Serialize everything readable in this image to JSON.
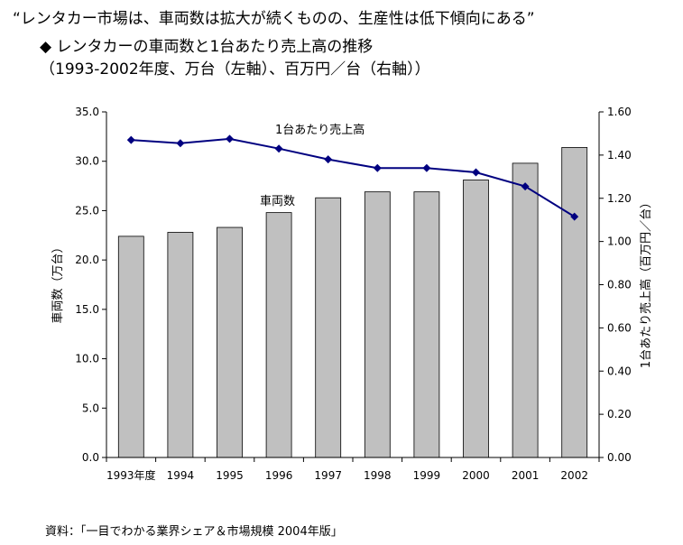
{
  "headline": "“レンタカー市場は、車両数は拡大が続くものの、生産性は低下傾向にある”",
  "subtitle_line1": "◆ レンタカーの車両数と1台あたり売上高の推移",
  "subtitle_line2": "（1993-2002年度、万台（左軸）、百万円／台（右軸））",
  "source": "資料：「一目でわかる業界シェア＆市場規模 2004年版」",
  "chart_data": {
    "type": "bar+line",
    "categories": [
      "1993年度",
      "1994",
      "1995",
      "1996",
      "1997",
      "1998",
      "1999",
      "2000",
      "2001",
      "2002"
    ],
    "series": [
      {
        "name": "車両数",
        "type": "bar",
        "axis": "left",
        "color": "#c0c0c0",
        "values": [
          22.4,
          22.8,
          23.3,
          24.8,
          26.3,
          26.9,
          26.9,
          28.1,
          29.8,
          31.4
        ]
      },
      {
        "name": "1台あたり売上高",
        "type": "line",
        "axis": "right",
        "color": "#000080",
        "values": [
          1.47,
          1.455,
          1.475,
          1.43,
          1.38,
          1.34,
          1.34,
          1.32,
          1.255,
          1.115
        ]
      }
    ],
    "ylabel_left": "車両数（万台）",
    "ylabel_right": "1台あたり売上高（百万円／台）",
    "ylim_left": [
      0,
      35
    ],
    "ylim_right": [
      0,
      1.6
    ],
    "yticks_left": [
      "0.0",
      "5.0",
      "10.0",
      "15.0",
      "20.0",
      "25.0",
      "30.0",
      "35.0"
    ],
    "yticks_right": [
      "0.00",
      "0.20",
      "0.40",
      "0.60",
      "0.80",
      "1.00",
      "1.20",
      "1.40",
      "1.60"
    ],
    "grid": false
  }
}
